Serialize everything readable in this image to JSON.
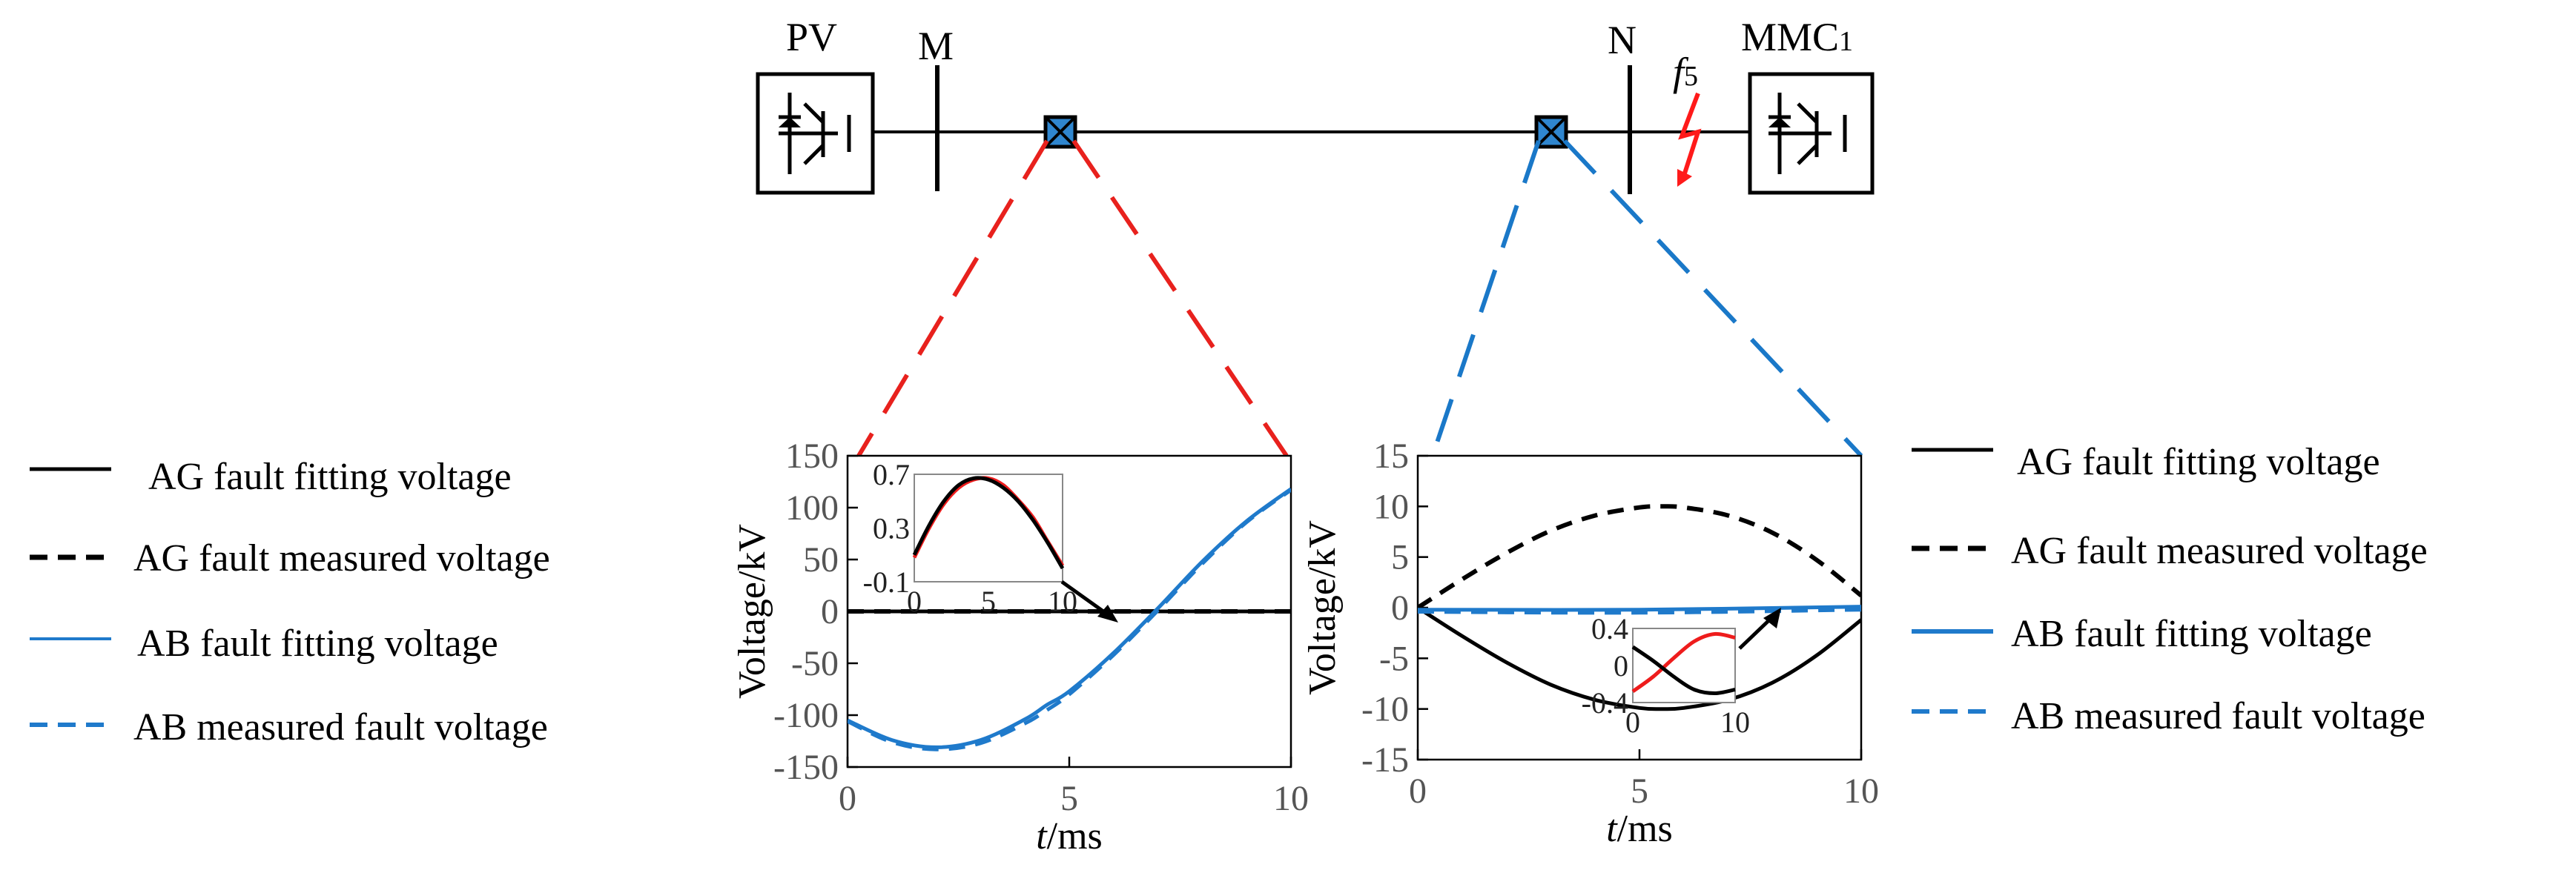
{
  "diagram": {
    "source_label": "PV",
    "bus_m_label": "M",
    "bus_n_label": "N",
    "fault_label": "f",
    "fault_label_sub": "5",
    "station_label": "MMC",
    "station_label_sub": "1"
  },
  "colors": {
    "ag_fitting": "#000000",
    "ag_measured": "#000000",
    "ab_fitting": "#1f7acb",
    "ab_measured": "#1f7acb",
    "fault_arrow": "#ff1a1a",
    "breaker_fill": "#2f86cf",
    "zoom_left": "#e8211d",
    "zoom_right": "#1a78c8",
    "inset_red": "#ee1c1c"
  },
  "left_legend": [
    {
      "label": "AG fault fitting voltage",
      "style": "solid"
    },
    {
      "label": "AG fault measured voltage",
      "style": "dashed"
    },
    {
      "label": "AB fault fitting voltage",
      "style": "solid"
    },
    {
      "label": "AB measured fault voltage",
      "style": "dashed"
    }
  ],
  "right_legend": [
    {
      "label": "AG fault fitting voltage",
      "style": "solid"
    },
    {
      "label": "AG fault measured voltage",
      "style": "dashed"
    },
    {
      "label": "AB fault fitting voltage",
      "style": "solid"
    },
    {
      "label": "AB measured fault voltage",
      "style": "dashed"
    }
  ],
  "chart_data": [
    {
      "type": "line",
      "xlabel_italic": "t",
      "xlabel_rest": "/ms",
      "ylabel": "Voltage/kV",
      "xlim": [
        0,
        10
      ],
      "ylim": [
        -150,
        150
      ],
      "xticks": [
        "0",
        "5",
        "10"
      ],
      "yticks": [
        "150",
        "100",
        "50",
        "0",
        "-50",
        "-100",
        "-150"
      ],
      "series": [
        {
          "name": "AG fault fitting voltage",
          "x": [
            0,
            2,
            4,
            6,
            8,
            10
          ],
          "y": [
            0,
            0,
            0,
            0,
            0,
            0
          ]
        },
        {
          "name": "AG fault measured voltage",
          "x": [
            0,
            2,
            4,
            6,
            8,
            10
          ],
          "y": [
            0,
            0,
            0,
            0,
            0,
            0
          ]
        },
        {
          "name": "AB fault fitting voltage",
          "x": [
            0,
            1,
            2,
            3,
            4,
            4.5,
            5,
            6,
            7,
            8,
            9,
            10
          ],
          "y": [
            -105,
            -124,
            -131,
            -124,
            -104,
            -90,
            -77,
            -40,
            3,
            48,
            87,
            118
          ]
        },
        {
          "name": "AB measured fault voltage",
          "x": [
            0,
            1,
            2,
            3,
            4,
            4.5,
            5,
            6,
            7,
            8,
            9,
            10
          ],
          "y": [
            -106,
            -126,
            -133,
            -127,
            -108,
            -95,
            -80,
            -42,
            1,
            46,
            86,
            117
          ]
        }
      ],
      "inset": {
        "xlim": [
          0,
          10
        ],
        "ylim": [
          -0.1,
          0.7
        ],
        "xticks": [
          "0",
          "5",
          "10"
        ],
        "yticks": [
          "0.7",
          "0.3",
          "-0.1"
        ],
        "series": [
          {
            "x": [
              0,
              1,
              2,
              3,
              4,
              5,
              6,
              7,
              8,
              9,
              10
            ],
            "y": [
              0.08,
              0.3,
              0.48,
              0.6,
              0.66,
              0.67,
              0.62,
              0.51,
              0.38,
              0.2,
              0.02
            ]
          },
          {
            "x": [
              0,
              1,
              2,
              3,
              4,
              5,
              6,
              7,
              8,
              9,
              10
            ],
            "y": [
              0.1,
              0.32,
              0.5,
              0.62,
              0.67,
              0.66,
              0.6,
              0.5,
              0.36,
              0.19,
              0.0
            ]
          }
        ]
      }
    },
    {
      "type": "line",
      "xlabel_italic": "t",
      "xlabel_rest": "/ms",
      "ylabel": "Voltage/kV",
      "xlim": [
        0,
        10
      ],
      "ylim": [
        -15,
        15
      ],
      "xticks": [
        "0",
        "5",
        "10"
      ],
      "yticks": [
        "15",
        "10",
        "5",
        "0",
        "-5",
        "-10",
        "-15"
      ],
      "series": [
        {
          "name": "AG fault fitting voltage",
          "x": [
            0,
            1,
            2,
            3,
            4,
            5,
            5.5,
            6,
            7,
            8,
            9,
            10
          ],
          "y": [
            0,
            -2.8,
            -5.4,
            -7.6,
            -9.1,
            -9.9,
            -10,
            -9.9,
            -9.1,
            -7.4,
            -4.7,
            -1.2
          ]
        },
        {
          "name": "AG fault measured voltage",
          "x": [
            0,
            1,
            2,
            3,
            4,
            5,
            5.5,
            6,
            7,
            8,
            9,
            10
          ],
          "y": [
            0,
            2.8,
            5.4,
            7.6,
            9.1,
            9.9,
            10,
            9.9,
            9.1,
            7.4,
            4.7,
            1.2
          ]
        },
        {
          "name": "AB fault fitting voltage",
          "x": [
            0,
            5,
            10
          ],
          "y": [
            -0.2,
            -0.2,
            0.1
          ]
        },
        {
          "name": "AB measured fault voltage",
          "x": [
            0,
            5,
            10
          ],
          "y": [
            -0.4,
            -0.5,
            -0.2
          ]
        }
      ],
      "inset": {
        "xlim": [
          0,
          10
        ],
        "ylim": [
          -0.4,
          0.4
        ],
        "xticks": [
          "0",
          "10"
        ],
        "yticks": [
          "0.4",
          "0",
          "-0.4"
        ],
        "series": [
          {
            "x": [
              0,
              2,
              4,
              6,
              8,
              10
            ],
            "y": [
              -0.28,
              -0.12,
              0.08,
              0.26,
              0.34,
              0.3
            ]
          },
          {
            "x": [
              0,
              2,
              4,
              6,
              8,
              10
            ],
            "y": [
              0.2,
              0.05,
              -0.12,
              -0.26,
              -0.3,
              -0.26
            ]
          }
        ]
      }
    }
  ]
}
